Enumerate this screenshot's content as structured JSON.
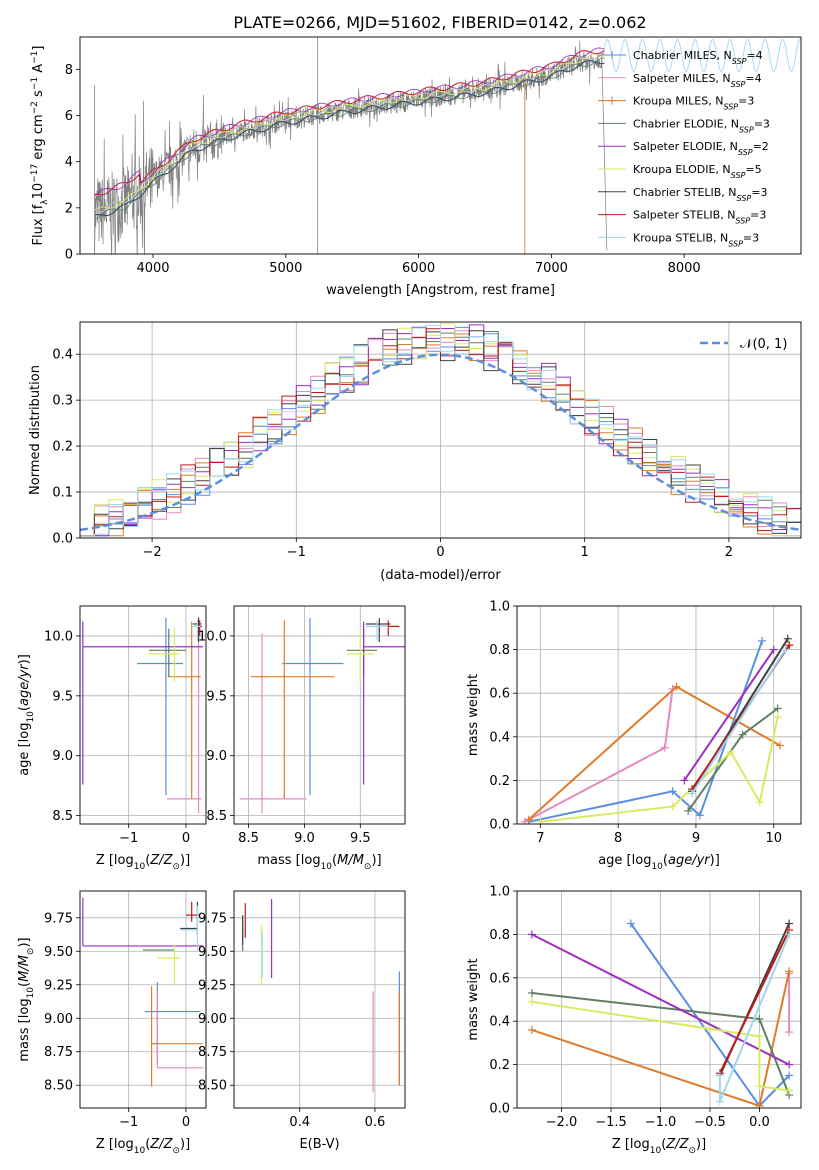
{
  "figure": {
    "title": "PLATE=0266, MJD=51602, FIBERID=0142, z=0.062"
  },
  "colors": {
    "observed": "#808080",
    "chabrier_miles": "#5b8ede",
    "salpeter_miles": "#e58ac2",
    "kroupa_miles": "#e07b28",
    "chabrier_elodie": "#5f7f63",
    "salpeter_elodie": "#9b2fbf",
    "kroupa_elodie": "#d8eb60",
    "chabrier_stelib": "#404040",
    "salpeter_stelib": "#c01a1a",
    "kroupa_stelib": "#9fd8ee",
    "grid": "#b0b0b0"
  },
  "chart_data": [
    {
      "id": "spectrum",
      "type": "line",
      "xlabel": "wavelength [Angstrom, rest frame]",
      "ylabel": "Flux [f$_\\lambda$10$^{-17}$ erg cm$^{-2}$ s$^{-1}$ A$^{-1}$]",
      "xlim": [
        3450,
        8880
      ],
      "ylim": [
        0,
        9.4
      ],
      "grid": false,
      "xticks": [
        4000,
        5000,
        6000,
        7000,
        8000
      ],
      "yticks": [
        0,
        2,
        4,
        6,
        8
      ],
      "legend_position": "right",
      "legend": [
        {
          "imf": "Chabrier",
          "lib": "MILES",
          "n": "4"
        },
        {
          "imf": "Salpeter",
          "lib": "MILES",
          "n": "4"
        },
        {
          "imf": "Kroupa",
          "lib": "MILES",
          "n": "3"
        },
        {
          "imf": "Chabrier",
          "lib": "ELODIE",
          "n": "3"
        },
        {
          "imf": "Salpeter",
          "lib": "ELODIE",
          "n": "2"
        },
        {
          "imf": "Kroupa",
          "lib": "ELODIE",
          "n": "5"
        },
        {
          "imf": "Chabrier",
          "lib": "STELIB",
          "n": "3"
        },
        {
          "imf": "Salpeter",
          "lib": "STELIB",
          "n": "3"
        },
        {
          "imf": "Kroupa",
          "lib": "STELIB",
          "n": "3"
        }
      ],
      "continuum": {
        "x": [
          3560,
          3800,
          4000,
          4300,
          4600,
          5000,
          5500,
          6000,
          6500,
          7000,
          7200,
          7400
        ],
        "y": [
          1.7,
          2.2,
          3.2,
          4.6,
          5.2,
          5.8,
          6.3,
          6.7,
          7.1,
          7.8,
          8.3,
          8.5
        ]
      }
    },
    {
      "id": "residuals",
      "type": "line",
      "xlabel": "(data-model)/error",
      "ylabel": "Normed distribution",
      "xlim": [
        -2.5,
        2.5
      ],
      "ylim": [
        0,
        0.47
      ],
      "grid": true,
      "xticks": [
        -2,
        -1,
        0,
        1,
        2
      ],
      "yticks": [
        0.0,
        0.1,
        0.2,
        0.3,
        0.4
      ],
      "legend": "𝒩(0, 1)",
      "legend_position": "top-right",
      "bin_width": 0.1
    },
    {
      "id": "age_vs_Z",
      "type": "scatter",
      "xlabel": "Z [log10(Z/Z⊙)]",
      "ylabel": "age  [log10(age/yr)]",
      "xlim": [
        -1.85,
        0.35
      ],
      "ylim": [
        8.43,
        10.25
      ],
      "grid": true,
      "xticks": [
        -1,
        0
      ],
      "yticks": [
        8.5,
        9.0,
        9.5,
        10.0
      ],
      "points": [
        {
          "c": "chabrier_miles",
          "x": -0.35,
          "xerr": [
            0.5,
            0.3
          ],
          "y": 9.77,
          "yerr": [
            1.1,
            0.38
          ]
        },
        {
          "c": "salpeter_miles",
          "x": 0.22,
          "xerr": [
            0.55,
            0.05
          ],
          "y": 8.64,
          "yerr": [
            0.12,
            1.52
          ]
        },
        {
          "c": "kroupa_miles",
          "x": 0.1,
          "xerr": [
            0.42,
            0.16
          ],
          "y": 9.66,
          "yerr": [
            1.02,
            0.46
          ]
        },
        {
          "c": "chabrier_elodie",
          "x": -0.3,
          "xerr": [
            0.35,
            0.3
          ],
          "y": 9.88,
          "yerr": [
            0.22,
            0.18
          ]
        },
        {
          "c": "salpeter_elodie",
          "x": -1.8,
          "xerr": [
            0.0,
            2.1
          ],
          "y": 9.91,
          "yerr": [
            1.15,
            0.21
          ]
        },
        {
          "c": "kroupa_elodie",
          "x": -0.2,
          "xerr": [
            0.45,
            0.1
          ],
          "y": 9.85,
          "yerr": [
            0.23,
            0.22
          ]
        },
        {
          "c": "chabrier_stelib",
          "x": 0.22,
          "xerr": [
            0.1,
            0.05
          ],
          "y": 10.1,
          "yerr": [
            0.15,
            0.05
          ]
        },
        {
          "c": "salpeter_stelib",
          "x": 0.24,
          "xerr": [
            0.08,
            0.04
          ],
          "y": 10.08,
          "yerr": [
            0.08,
            0.05
          ]
        },
        {
          "c": "kroupa_stelib",
          "x": 0.2,
          "xerr": [
            0.1,
            0.05
          ],
          "y": 10.08,
          "yerr": [
            0.12,
            0.05
          ]
        }
      ]
    },
    {
      "id": "age_vs_mass",
      "type": "scatter",
      "xlabel": "mass [log10(M/M⊙)]",
      "ylabel": "",
      "xlim": [
        8.37,
        9.9
      ],
      "ylim": [
        8.43,
        10.25
      ],
      "grid": true,
      "xticks": [
        8.5,
        9.0,
        9.5
      ],
      "yticks": [
        8.5,
        9.0,
        9.5,
        10.0
      ],
      "points": [
        {
          "c": "chabrier_miles",
          "x": 9.05,
          "xerr": [
            0.25,
            0.3
          ],
          "y": 9.77,
          "yerr": [
            1.1,
            0.38
          ]
        },
        {
          "c": "salpeter_miles",
          "x": 8.62,
          "xerr": [
            0.2,
            0.4
          ],
          "y": 8.64,
          "yerr": [
            0.12,
            1.38
          ]
        },
        {
          "c": "kroupa_miles",
          "x": 8.82,
          "xerr": [
            0.3,
            0.45
          ],
          "y": 9.66,
          "yerr": [
            1.02,
            0.47
          ]
        },
        {
          "c": "chabrier_elodie",
          "x": 9.53,
          "xerr": [
            0.15,
            0.12
          ],
          "y": 9.88,
          "yerr": [
            0.22,
            0.18
          ]
        },
        {
          "c": "salpeter_elodie",
          "x": 9.53,
          "xerr": [
            0.0,
            0.38
          ],
          "y": 9.91,
          "yerr": [
            1.15,
            0.21
          ]
        },
        {
          "c": "kroupa_elodie",
          "x": 9.5,
          "xerr": [
            0.12,
            0.12
          ],
          "y": 9.85,
          "yerr": [
            0.23,
            0.22
          ]
        },
        {
          "c": "chabrier_stelib",
          "x": 9.67,
          "xerr": [
            0.12,
            0.1
          ],
          "y": 10.1,
          "yerr": [
            0.15,
            0.05
          ]
        },
        {
          "c": "salpeter_stelib",
          "x": 9.75,
          "xerr": [
            0.1,
            0.1
          ],
          "y": 10.08,
          "yerr": [
            0.08,
            0.05
          ]
        },
        {
          "c": "kroupa_stelib",
          "x": 9.65,
          "xerr": [
            0.1,
            0.1
          ],
          "y": 10.08,
          "yerr": [
            0.12,
            0.05
          ]
        }
      ]
    },
    {
      "id": "weight_vs_age",
      "type": "line",
      "xlabel": "age  [log10(age/yr)]",
      "ylabel": "mass weight",
      "xlim": [
        6.7,
        10.35
      ],
      "ylim": [
        0,
        1.0
      ],
      "grid": true,
      "xticks": [
        7,
        8,
        9,
        10
      ],
      "yticks": [
        0.0,
        0.2,
        0.4,
        0.6,
        0.8,
        1.0
      ],
      "series": [
        {
          "c": "chabrier_miles",
          "x": [
            6.85,
            8.7,
            9.05,
            9.85
          ],
          "y": [
            0.01,
            0.15,
            0.04,
            0.84
          ]
        },
        {
          "c": "salpeter_miles",
          "x": [
            6.8,
            8.6,
            8.7
          ],
          "y": [
            0.01,
            0.35,
            0.62
          ]
        },
        {
          "c": "kroupa_miles",
          "x": [
            6.85,
            8.75,
            10.08
          ],
          "y": [
            0.02,
            0.63,
            0.36
          ]
        },
        {
          "c": "chabrier_elodie",
          "x": [
            8.9,
            9.6,
            10.05
          ],
          "y": [
            0.06,
            0.41,
            0.53
          ]
        },
        {
          "c": "salpeter_elodie",
          "x": [
            8.85,
            10.0
          ],
          "y": [
            0.2,
            0.8
          ]
        },
        {
          "c": "kroupa_elodie",
          "x": [
            7.0,
            8.7,
            9.45,
            9.82,
            10.05
          ],
          "y": [
            0.01,
            0.08,
            0.33,
            0.1,
            0.49
          ]
        },
        {
          "c": "chabrier_stelib",
          "x": [
            8.95,
            10.18
          ],
          "y": [
            0.15,
            0.85
          ]
        },
        {
          "c": "salpeter_stelib",
          "x": [
            8.95,
            10.2
          ],
          "y": [
            0.16,
            0.82
          ]
        },
        {
          "c": "kroupa_stelib",
          "x": [
            8.95,
            10.15
          ],
          "y": [
            0.14,
            0.8
          ]
        }
      ]
    },
    {
      "id": "mass_vs_Z",
      "type": "scatter",
      "xlabel": "Z [log10(Z/Z⊙)]",
      "ylabel": "mass [log10(M/M⊙)]",
      "xlim": [
        -1.85,
        0.35
      ],
      "ylim": [
        8.33,
        9.95
      ],
      "grid": true,
      "xticks": [
        -1,
        0
      ],
      "yticks": [
        8.5,
        8.75,
        9.0,
        9.25,
        9.5,
        9.75
      ],
      "points": [
        {
          "c": "chabrier_miles",
          "x": -0.5,
          "xerr": [
            0.22,
            0.75
          ],
          "y": 9.05,
          "yerr": [
            0.4,
            0.22
          ]
        },
        {
          "c": "salpeter_miles",
          "x": -0.5,
          "xerr": [
            0.0,
            0.8
          ],
          "y": 8.63,
          "yerr": [
            0.0,
            0.58
          ]
        },
        {
          "c": "kroupa_miles",
          "x": -0.6,
          "xerr": [
            0.0,
            0.88
          ],
          "y": 8.81,
          "yerr": [
            0.32,
            0.43
          ]
        },
        {
          "c": "chabrier_elodie",
          "x": -0.5,
          "xerr": [
            0.25,
            0.3
          ],
          "y": 9.51,
          "yerr": [
            0.0,
            0.0
          ]
        },
        {
          "c": "salpeter_elodie",
          "x": -1.8,
          "xerr": [
            0.0,
            2.1
          ],
          "y": 9.54,
          "yerr": [
            0.0,
            0.36
          ]
        },
        {
          "c": "kroupa_elodie",
          "x": -0.2,
          "xerr": [
            0.3,
            0.1
          ],
          "y": 9.45,
          "yerr": [
            0.2,
            0.1
          ]
        },
        {
          "c": "chabrier_stelib",
          "x": 0.2,
          "xerr": [
            0.3,
            0.0
          ],
          "y": 9.67,
          "yerr": [
            0.05,
            0.2
          ]
        },
        {
          "c": "salpeter_stelib",
          "x": 0.1,
          "xerr": [
            0.1,
            0.15
          ],
          "y": 9.77,
          "yerr": [
            0.05,
            0.1
          ]
        },
        {
          "c": "kroupa_stelib",
          "x": 0.2,
          "xerr": [
            0.3,
            0.0
          ],
          "y": 9.66,
          "yerr": [
            0.15,
            0.18
          ]
        }
      ]
    },
    {
      "id": "mass_vs_ebv",
      "type": "scatter",
      "xlabel": "E(B-V)",
      "ylabel": "",
      "xlim": [
        0.225,
        0.68
      ],
      "ylim": [
        8.33,
        9.95
      ],
      "grid": true,
      "xticks": [
        0.4,
        0.6
      ],
      "yticks": [
        8.5,
        8.75,
        9.0,
        9.25,
        9.5,
        9.75
      ],
      "points": [
        {
          "c": "chabrier_miles",
          "x": 0.665,
          "xerr": [
            0,
            0
          ],
          "y": 9.05,
          "yerr": [
            0.55,
            0.3
          ]
        },
        {
          "c": "salpeter_miles",
          "x": 0.595,
          "xerr": [
            0,
            0
          ],
          "y": 8.8,
          "yerr": [
            0.35,
            0.4
          ]
        },
        {
          "c": "kroupa_miles",
          "x": 0.665,
          "xerr": [
            0,
            0
          ],
          "y": 8.9,
          "yerr": [
            0.4,
            0.3
          ]
        },
        {
          "c": "chabrier_elodie",
          "x": 0.248,
          "xerr": [
            0,
            0
          ],
          "y": 9.62,
          "yerr": [
            0.12,
            0.1
          ]
        },
        {
          "c": "salpeter_elodie",
          "x": 0.325,
          "xerr": [
            0,
            0
          ],
          "y": 9.62,
          "yerr": [
            0.32,
            0.27
          ]
        },
        {
          "c": "kroupa_elodie",
          "x": 0.298,
          "xerr": [
            0,
            0
          ],
          "y": 9.5,
          "yerr": [
            0.25,
            0.2
          ]
        },
        {
          "c": "chabrier_stelib",
          "x": 0.248,
          "xerr": [
            0,
            0
          ],
          "y": 9.65,
          "yerr": [
            0.1,
            0.12
          ]
        },
        {
          "c": "salpeter_stelib",
          "x": 0.255,
          "xerr": [
            0,
            0
          ],
          "y": 9.7,
          "yerr": [
            0.1,
            0.16
          ]
        },
        {
          "c": "kroupa_stelib",
          "x": 0.3,
          "xerr": [
            0,
            0
          ],
          "y": 9.5,
          "yerr": [
            0.2,
            0.15
          ]
        }
      ]
    },
    {
      "id": "weight_vs_Z",
      "type": "line",
      "xlabel": "Z [log10(Z/Z⊙)]",
      "ylabel": "mass weight",
      "xlim": [
        -2.45,
        0.42
      ],
      "ylim": [
        0,
        1.0
      ],
      "grid": true,
      "xticks": [
        -2.0,
        -1.5,
        -1.0,
        -0.5,
        0.0
      ],
      "yticks": [
        0.0,
        0.2,
        0.4,
        0.6,
        0.8,
        1.0
      ],
      "series": [
        {
          "c": "chabrier_miles",
          "x": [
            -1.3,
            0.0,
            0.3
          ],
          "y": [
            0.85,
            0.01,
            0.15
          ]
        },
        {
          "c": "salpeter_miles",
          "x": [
            0.3,
            0.3
          ],
          "y": [
            0.35,
            0.62
          ]
        },
        {
          "c": "kroupa_miles",
          "x": [
            -2.3,
            0.0,
            0.3
          ],
          "y": [
            0.36,
            0.01,
            0.63
          ]
        },
        {
          "c": "chabrier_elodie",
          "x": [
            -2.3,
            0.0,
            0.3
          ],
          "y": [
            0.53,
            0.41,
            0.06
          ]
        },
        {
          "c": "salpeter_elodie",
          "x": [
            -2.3,
            0.3
          ],
          "y": [
            0.8,
            0.2
          ]
        },
        {
          "c": "kroupa_elodie",
          "x": [
            -2.3,
            0.0,
            0.0,
            0.3
          ],
          "y": [
            0.49,
            0.33,
            0.1,
            0.08
          ]
        },
        {
          "c": "chabrier_stelib",
          "x": [
            -0.4,
            0.3
          ],
          "y": [
            0.15,
            0.85
          ]
        },
        {
          "c": "salpeter_stelib",
          "x": [
            -0.4,
            0.3
          ],
          "y": [
            0.16,
            0.82
          ]
        },
        {
          "c": "kroupa_stelib",
          "x": [
            -0.4,
            -0.4,
            0.3
          ],
          "y": [
            0.15,
            0.03,
            0.8
          ]
        }
      ]
    }
  ]
}
